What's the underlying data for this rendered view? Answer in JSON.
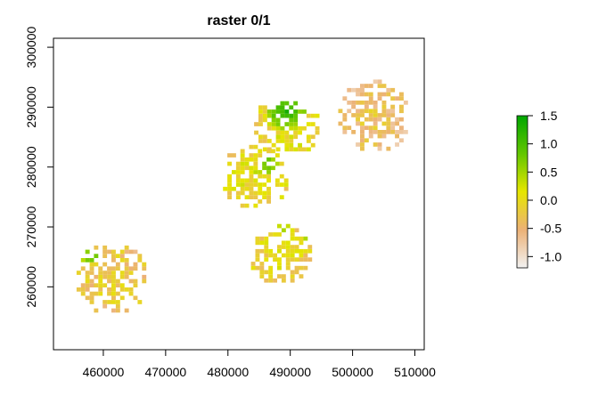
{
  "chart_data": {
    "type": "heatmap",
    "title": "raster 0/1",
    "xlabel": "",
    "ylabel": "",
    "xlim": [
      452000,
      511500
    ],
    "ylim": [
      249500,
      301500
    ],
    "x_ticks": [
      460000,
      470000,
      480000,
      490000,
      500000,
      510000
    ],
    "x_tick_labels": [
      "460000",
      "470000",
      "480000",
      "490000",
      "500000",
      "510000"
    ],
    "y_ticks": [
      260000,
      270000,
      280000,
      290000,
      300000
    ],
    "y_tick_labels": [
      "260000",
      "270000",
      "280000",
      "290000",
      "300000"
    ],
    "legend": {
      "position": "right",
      "range": [
        -1.2,
        1.5
      ],
      "ticks": [
        -1.0,
        -0.5,
        0.0,
        0.5,
        1.0,
        1.5
      ],
      "tick_labels": [
        "-1.0",
        "-0.5",
        "0.0",
        "0.5",
        "1.0",
        "1.5"
      ],
      "colors": [
        "#f2f2f2",
        "#ecb176",
        "#e6e600",
        "#63c600",
        "#00a600"
      ]
    },
    "grid": false,
    "cell_size": 700,
    "clusters": [
      {
        "name": "southwest",
        "cx": 461000,
        "cy": 261000,
        "r": 6000,
        "base": -0.35
      },
      {
        "name": "north-central",
        "cx": 489000,
        "cy": 286000,
        "r": 5500,
        "base": -0.1
      },
      {
        "name": "central",
        "cx": 484000,
        "cy": 278000,
        "r": 5500,
        "base": -0.1
      },
      {
        "name": "northeast",
        "cx": 503000,
        "cy": 288000,
        "r": 6000,
        "base": -0.55
      },
      {
        "name": "south-central",
        "cx": 488000,
        "cy": 265000,
        "r": 5000,
        "base": -0.2
      }
    ],
    "hotspots": [
      {
        "cx": 489000,
        "cy": 289000,
        "r": 3000,
        "value": 1.3
      },
      {
        "cx": 486000,
        "cy": 280000,
        "r": 1800,
        "value": 1.0
      },
      {
        "cx": 489000,
        "cy": 270500,
        "r": 2000,
        "value": 0.6
      },
      {
        "cx": 492500,
        "cy": 268500,
        "r": 1200,
        "value": 0.6
      },
      {
        "cx": 457500,
        "cy": 265000,
        "r": 1500,
        "value": 1.0
      }
    ]
  }
}
